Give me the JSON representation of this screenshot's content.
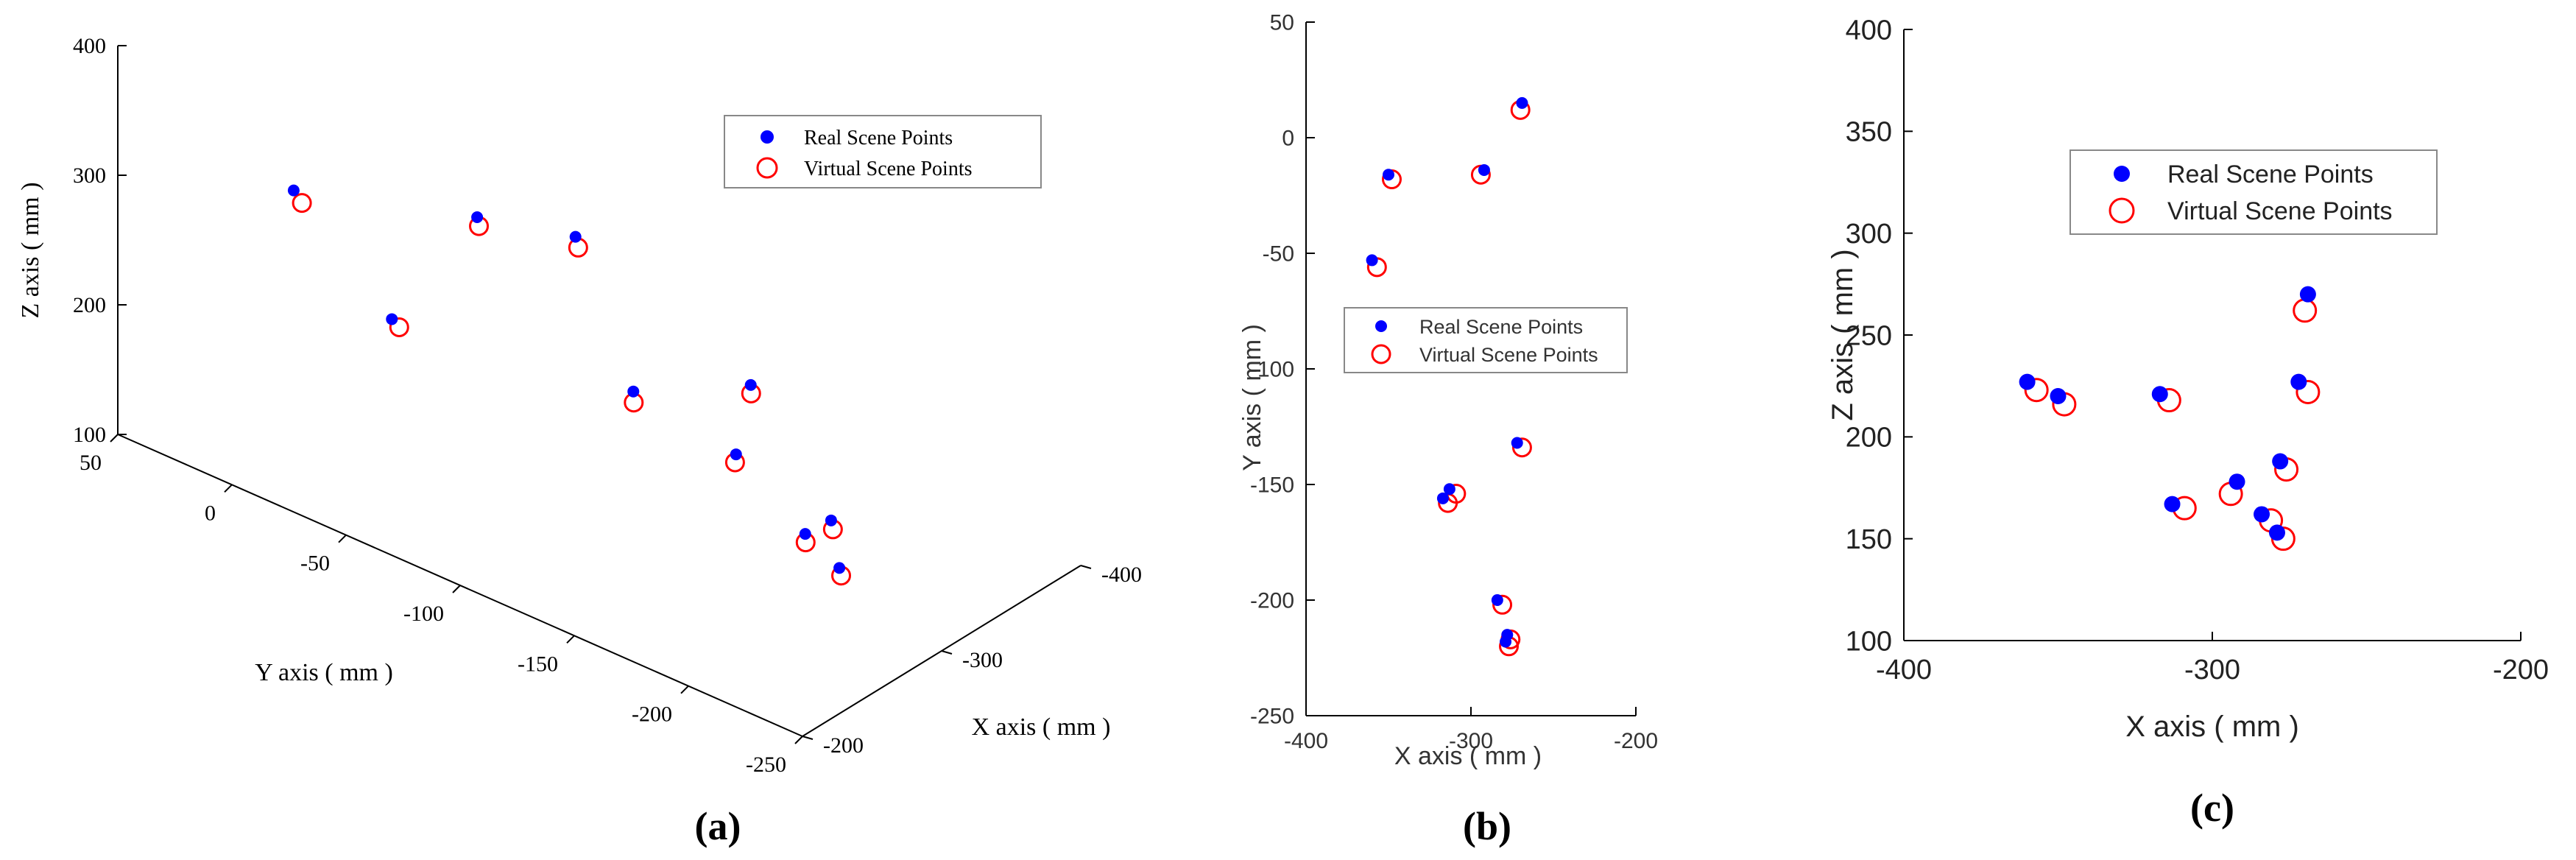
{
  "colors": {
    "real": "#0000ff",
    "virtual": "#ff0000",
    "axis": "#000000"
  },
  "chart_data": [
    {
      "panel": "a",
      "type": "scatter",
      "subtitle": "(a)",
      "title": "",
      "xlabel": "X axis ( mm )",
      "ylabel": "Y axis ( mm )",
      "zlabel": "Z axis ( mm )",
      "xlim": [
        -400,
        -200
      ],
      "ylim": [
        -250,
        50
      ],
      "zlim": [
        100,
        400
      ],
      "xticks": [
        "-200",
        "-300",
        "-400"
      ],
      "yticks": [
        "50",
        "0",
        "-50",
        "-100",
        "-150",
        "-200",
        "-250"
      ],
      "zticks": [
        "400",
        "300",
        "200",
        "100"
      ],
      "grid": false,
      "legend": {
        "position": "top-right",
        "entries": [
          "Real Scene Points",
          "Virtual Scene Points"
        ]
      },
      "series": [
        {
          "name": "Real Scene Points",
          "marker": "filled-circle",
          "x": [
            -269,
            -292,
            -350,
            -360,
            -272,
            -313,
            -317,
            -284,
            -278,
            -279
          ],
          "y": [
            15,
            -14,
            -16,
            -53,
            -132,
            -152,
            -156,
            -200,
            -215,
            -218
          ],
          "z": [
            270,
            178,
            220,
            227,
            227,
            167,
            221,
            162,
            188,
            153
          ]
        },
        {
          "name": "Virtual Scene Points",
          "marker": "open-circle",
          "x": [
            -270,
            -294,
            -348,
            -357,
            -269,
            -309,
            -314,
            -281,
            -276,
            -277
          ],
          "y": [
            12,
            -16,
            -18,
            -56,
            -134,
            -154,
            -158,
            -202,
            -217,
            -220
          ],
          "z": [
            262,
            172,
            216,
            223,
            222,
            165,
            218,
            159,
            184,
            150
          ]
        }
      ]
    },
    {
      "panel": "b",
      "type": "scatter",
      "subtitle": "(b)",
      "title": "",
      "xlabel": "X axis ( mm )",
      "ylabel": "Y axis ( mm )",
      "xlim": [
        -400,
        -200
      ],
      "ylim": [
        -250,
        50
      ],
      "xticks": [
        -400,
        -300,
        -200
      ],
      "yticks": [
        50,
        0,
        -50,
        -100,
        -150,
        -200,
        -250
      ],
      "grid": false,
      "legend": {
        "position": "middle-right",
        "entries": [
          "Real Scene Points",
          "Virtual Scene Points"
        ]
      },
      "series": [
        {
          "name": "Real Scene Points",
          "x": [
            -269,
            -292,
            -350,
            -360,
            -272,
            -313,
            -317,
            -284,
            -278,
            -279
          ],
          "y": [
            15,
            -14,
            -16,
            -53,
            -132,
            -152,
            -156,
            -200,
            -215,
            -218
          ]
        },
        {
          "name": "Virtual Scene Points",
          "x": [
            -270,
            -294,
            -348,
            -357,
            -269,
            -309,
            -314,
            -281,
            -276,
            -277
          ],
          "y": [
            12,
            -16,
            -18,
            -56,
            -134,
            -154,
            -158,
            -202,
            -217,
            -220
          ]
        }
      ]
    },
    {
      "panel": "c",
      "type": "scatter",
      "subtitle": "(c)",
      "title": "",
      "xlabel": "X axis ( mm )",
      "ylabel": "Z axis ( mm )",
      "xlim": [
        -400,
        -200
      ],
      "ylim": [
        100,
        400
      ],
      "xticks": [
        -400,
        -300,
        -200
      ],
      "yticks": [
        100,
        150,
        200,
        250,
        300,
        350,
        400
      ],
      "grid": false,
      "legend": {
        "position": "top-left",
        "entries": [
          "Real Scene Points",
          "Virtual Scene Points"
        ]
      },
      "series": [
        {
          "name": "Real Scene Points",
          "x": [
            -269,
            -292,
            -350,
            -360,
            -272,
            -313,
            -317,
            -284,
            -278,
            -279
          ],
          "y": [
            270,
            178,
            220,
            227,
            227,
            167,
            221,
            162,
            188,
            153
          ]
        },
        {
          "name": "Virtual Scene Points",
          "x": [
            -270,
            -294,
            -348,
            -357,
            -269,
            -309,
            -314,
            -281,
            -276,
            -277
          ],
          "y": [
            262,
            172,
            216,
            223,
            222,
            165,
            218,
            159,
            184,
            150
          ]
        }
      ]
    }
  ]
}
